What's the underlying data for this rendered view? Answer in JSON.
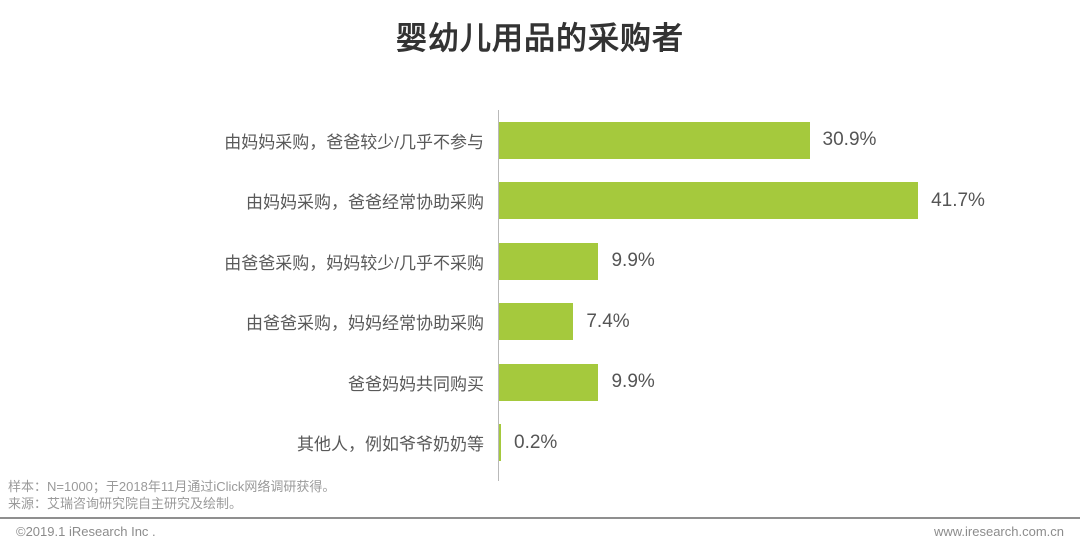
{
  "title": "婴幼儿用品的采购者",
  "chart_data": {
    "type": "bar",
    "orientation": "horizontal",
    "title": "婴幼儿用品的采购者",
    "categories": [
      "由妈妈采购，爸爸较少/几乎不参与",
      "由妈妈采购，爸爸经常协助采购",
      "由爸爸采购，妈妈较少/几乎不采购",
      "由爸爸采购，妈妈经常协助采购",
      "爸爸妈妈共同购买",
      "其他人，例如爷爷奶奶等"
    ],
    "values": [
      30.9,
      41.7,
      9.9,
      7.4,
      9.9,
      0.2
    ],
    "value_labels": [
      "30.9%",
      "41.7%",
      "9.9%",
      "7.4%",
      "9.9%",
      "0.2%"
    ],
    "xlabel": "",
    "ylabel": "",
    "xlim": [
      0,
      45
    ],
    "grid": false,
    "legend": "none",
    "bar_color": "#a5c93d",
    "axis_line_color": "#b9b9b9"
  },
  "footnotes": {
    "sample": "样本：N=1000；于2018年11月通过iClick网络调研获得。",
    "source": "来源：艾瑞咨询研究院自主研究及绘制。"
  },
  "footer": {
    "copyright": "©2019.1 iResearch Inc .",
    "website": "www.iresearch.com.cn"
  }
}
